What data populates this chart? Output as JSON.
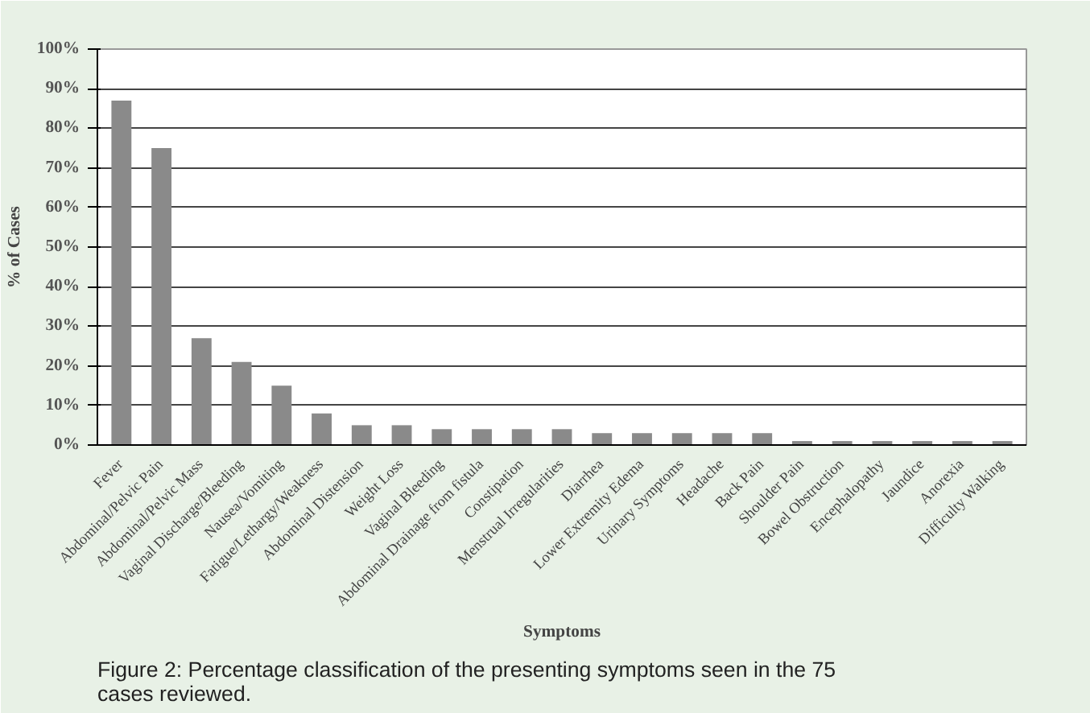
{
  "chart_data": {
    "type": "bar",
    "categories": [
      "Fever",
      "Abdominal/Pelvic Pain",
      "Abdominal/Pelvic Mass",
      "Vaginal Discharge/Bleeding",
      "Nausea/Vomiting",
      "Fatigue/Lethargy/Weakness",
      "Abdominal Distension",
      "Weight Loss",
      "Vaginal Bleeding",
      "Abdominal Drainage from fistula",
      "Constipation",
      "Menstrual Irregularities",
      "Diarrhea",
      "Lower Extremity Edema",
      "Urinary Symptoms",
      "Headache",
      "Back Pain",
      "Shoulder Pain",
      "Bowel Obstruction",
      "Encephalopathy",
      "Jaundice",
      "Anorexia",
      "Difficulty Walking"
    ],
    "values": [
      87,
      75,
      27,
      21,
      15,
      8,
      5,
      5,
      4,
      4,
      4,
      4,
      3,
      3,
      3,
      3,
      3,
      1,
      1,
      1,
      1,
      1,
      1
    ],
    "color": "#8a8a8a",
    "xlabel": "Symptoms",
    "ylabel": "% of Cases",
    "ylim": [
      0,
      100
    ],
    "yticks": [
      {
        "value": 0,
        "label": "0%"
      },
      {
        "value": 10,
        "label": "10%"
      },
      {
        "value": 20,
        "label": "20%"
      },
      {
        "value": 30,
        "label": "30%"
      },
      {
        "value": 40,
        "label": "40%"
      },
      {
        "value": 50,
        "label": "50%"
      },
      {
        "value": 60,
        "label": "60%"
      },
      {
        "value": 70,
        "label": "70%"
      },
      {
        "value": 80,
        "label": "80%"
      },
      {
        "value": 90,
        "label": "90%"
      },
      {
        "value": 100,
        "label": "100%"
      }
    ],
    "grid": "y",
    "annotations": [
      "Figure 2: Percentage classification of the presenting symptoms seen in the 75 cases reviewed."
    ]
  }
}
